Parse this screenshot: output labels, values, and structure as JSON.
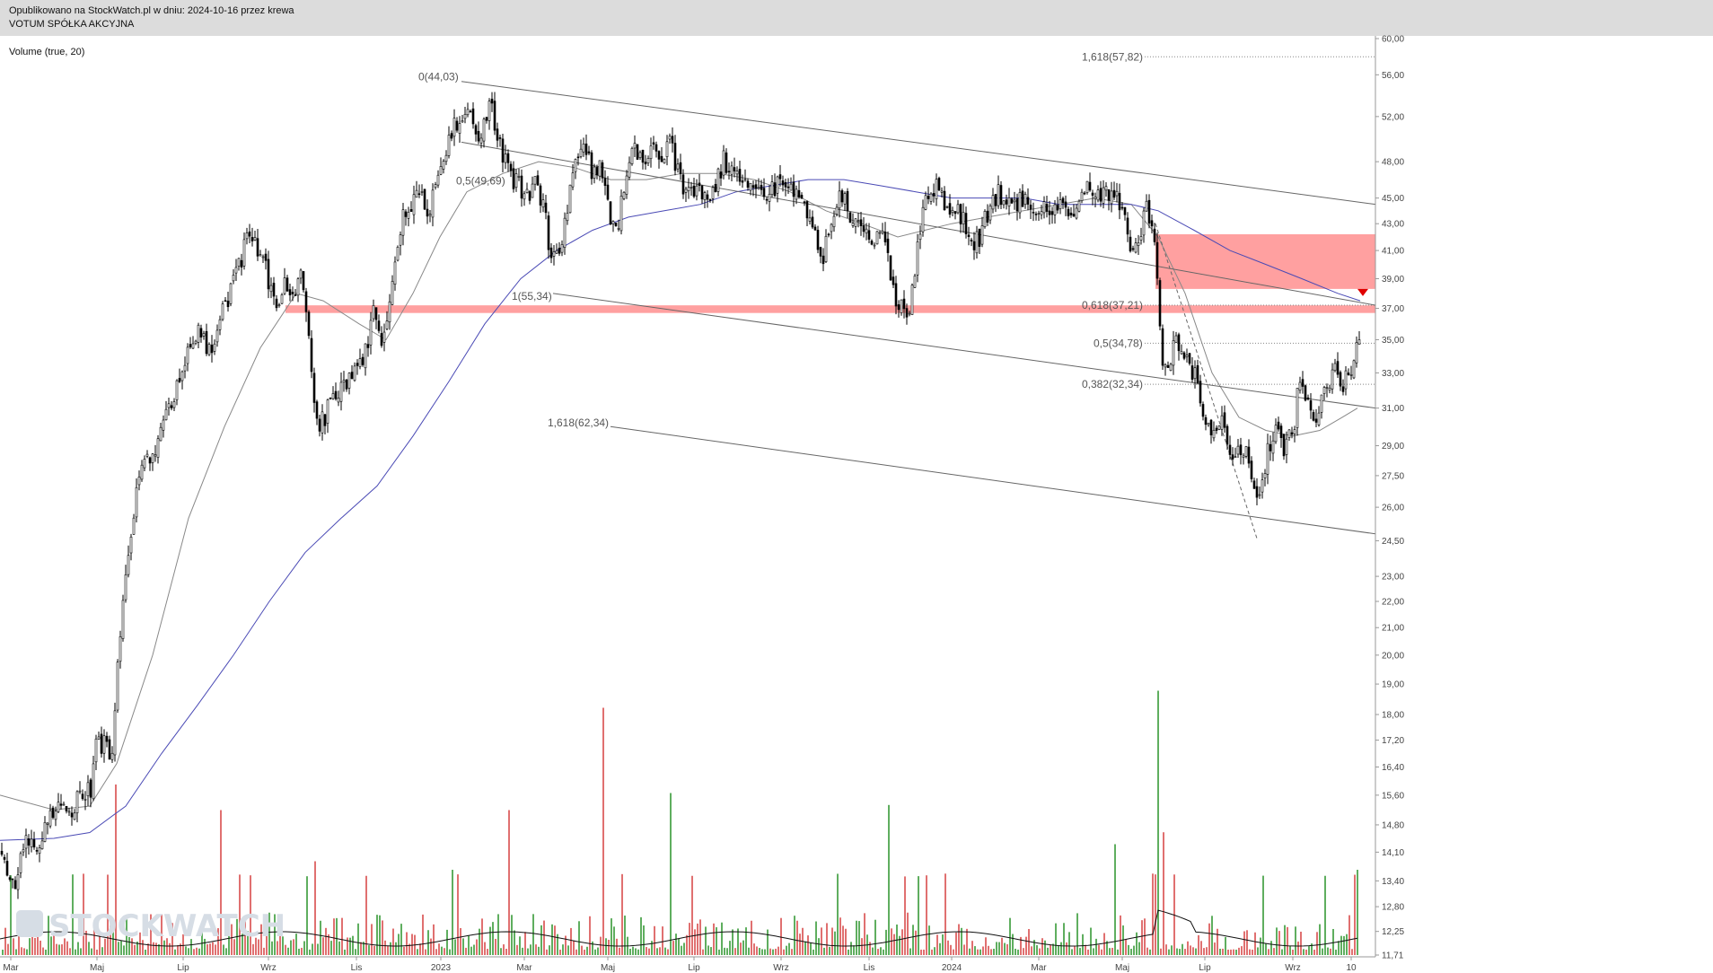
{
  "header": {
    "published": "Opublikowano na StockWatch.pl w dniu: 2024-10-16 przez krewa",
    "company": "VOTUM SPÓŁKA AKCYJNA"
  },
  "watermark": "STOCKWATCH",
  "chart_data": {
    "type": "candlestick",
    "indicator_label": "Volume (true, 20)",
    "y_axis": {
      "scale": "log",
      "range": [
        11.71,
        60.0
      ],
      "ticks": [
        "60,00",
        "56,00",
        "52,00",
        "48,00",
        "45,00",
        "43,00",
        "41,00",
        "39,00",
        "37,00",
        "35,00",
        "33,00",
        "31,00",
        "29,00",
        "27,50",
        "26,00",
        "24,50",
        "23,00",
        "22,00",
        "21,00",
        "20,00",
        "19,00",
        "18,00",
        "17,20",
        "16,40",
        "15,60",
        "14,80",
        "14,10",
        "13,40",
        "12,80",
        "12,25",
        "11,71"
      ]
    },
    "x_axis": {
      "labels": [
        "Mar",
        "Maj",
        "Lip",
        "Wrz",
        "Lis",
        "2023",
        "Mar",
        "Maj",
        "Lip",
        "Wrz",
        "Lis",
        "2024",
        "Mar",
        "Maj",
        "Lip",
        "Wrz",
        "10"
      ]
    },
    "price_path": [
      [
        0,
        14.2
      ],
      [
        8,
        13.6
      ],
      [
        15,
        13.4
      ],
      [
        25,
        14.3
      ],
      [
        40,
        14.4
      ],
      [
        60,
        15.1
      ],
      [
        80,
        15.3
      ],
      [
        100,
        15.8
      ],
      [
        105,
        17.4
      ],
      [
        115,
        17.0
      ],
      [
        125,
        16.7
      ],
      [
        130,
        19.5
      ],
      [
        140,
        23.3
      ],
      [
        150,
        26.2
      ],
      [
        160,
        28.4
      ],
      [
        175,
        29.0
      ],
      [
        185,
        30.5
      ],
      [
        195,
        32.0
      ],
      [
        205,
        34.0
      ],
      [
        215,
        35.5
      ],
      [
        225,
        35.0
      ],
      [
        235,
        34.5
      ],
      [
        245,
        37.0
      ],
      [
        255,
        38.0
      ],
      [
        265,
        40.0
      ],
      [
        275,
        42.0
      ],
      [
        285,
        41.0
      ],
      [
        295,
        39.5
      ],
      [
        305,
        37.0
      ],
      [
        315,
        38.5
      ],
      [
        325,
        38.0
      ],
      [
        335,
        39.0
      ],
      [
        342,
        36.5
      ],
      [
        350,
        30.0
      ],
      [
        360,
        30.5
      ],
      [
        370,
        31.5
      ],
      [
        380,
        32.0
      ],
      [
        395,
        33.0
      ],
      [
        405,
        34.0
      ],
      [
        415,
        36.5
      ],
      [
        425,
        35.0
      ],
      [
        435,
        38.0
      ],
      [
        445,
        43.0
      ],
      [
        455,
        44.5
      ],
      [
        465,
        45.5
      ],
      [
        475,
        44.0
      ],
      [
        485,
        45.5
      ],
      [
        495,
        49.0
      ],
      [
        505,
        51.0
      ],
      [
        515,
        52.5
      ],
      [
        525,
        52.0
      ],
      [
        535,
        50.0
      ],
      [
        545,
        53.0
      ],
      [
        555,
        50.0
      ],
      [
        565,
        47.0
      ],
      [
        575,
        46.0
      ],
      [
        585,
        45.5
      ],
      [
        595,
        46.0
      ],
      [
        605,
        44.0
      ],
      [
        612,
        41.0
      ],
      [
        620,
        40.5
      ],
      [
        630,
        44.0
      ],
      [
        640,
        48.0
      ],
      [
        650,
        49.0
      ],
      [
        660,
        47.0
      ],
      [
        670,
        47.5
      ],
      [
        678,
        43.0
      ],
      [
        685,
        42.0
      ],
      [
        695,
        46.0
      ],
      [
        705,
        49.0
      ],
      [
        715,
        48.0
      ],
      [
        725,
        49.0
      ],
      [
        735,
        47.5
      ],
      [
        745,
        49.5
      ],
      [
        755,
        47.0
      ],
      [
        765,
        45.0
      ],
      [
        775,
        46.0
      ],
      [
        785,
        45.0
      ],
      [
        795,
        46.0
      ],
      [
        805,
        48.0
      ],
      [
        815,
        47.5
      ],
      [
        825,
        46.0
      ],
      [
        835,
        45.5
      ],
      [
        845,
        45.0
      ],
      [
        855,
        45.5
      ],
      [
        865,
        46.0
      ],
      [
        875,
        46.5
      ],
      [
        885,
        45.5
      ],
      [
        895,
        44.5
      ],
      [
        905,
        43.0
      ],
      [
        915,
        40.5
      ],
      [
        925,
        43.0
      ],
      [
        935,
        45.5
      ],
      [
        945,
        43.5
      ],
      [
        955,
        43.0
      ],
      [
        965,
        42.5
      ],
      [
        975,
        42.0
      ],
      [
        985,
        41.5
      ],
      [
        992,
        39.0
      ],
      [
        998,
        37.5
      ],
      [
        1005,
        37.0
      ],
      [
        1012,
        36.5
      ],
      [
        1020,
        41.0
      ],
      [
        1030,
        45.0
      ],
      [
        1040,
        46.0
      ],
      [
        1050,
        45.0
      ],
      [
        1060,
        44.0
      ],
      [
        1070,
        43.5
      ],
      [
        1080,
        41.5
      ],
      [
        1090,
        42.0
      ],
      [
        1100,
        44.0
      ],
      [
        1110,
        45.5
      ],
      [
        1120,
        45.0
      ],
      [
        1130,
        44.5
      ],
      [
        1140,
        45.0
      ],
      [
        1150,
        44.0
      ],
      [
        1160,
        44.0
      ],
      [
        1170,
        44.5
      ],
      [
        1180,
        44.5
      ],
      [
        1190,
        43.0
      ],
      [
        1200,
        44.0
      ],
      [
        1210,
        45.5
      ],
      [
        1220,
        45.0
      ],
      [
        1230,
        45.0
      ],
      [
        1238,
        46.0
      ],
      [
        1245,
        45.0
      ],
      [
        1255,
        42.0
      ],
      [
        1265,
        41.0
      ],
      [
        1275,
        44.5
      ],
      [
        1284,
        42.0
      ],
      [
        1290,
        37.5
      ],
      [
        1295,
        33.0
      ],
      [
        1302,
        34.0
      ],
      [
        1310,
        35.0
      ],
      [
        1320,
        33.5
      ],
      [
        1330,
        33.0
      ],
      [
        1340,
        30.0
      ],
      [
        1350,
        29.5
      ],
      [
        1360,
        30.0
      ],
      [
        1370,
        28.5
      ],
      [
        1380,
        29.0
      ],
      [
        1390,
        28.5
      ],
      [
        1398,
        26.0
      ],
      [
        1405,
        27.0
      ],
      [
        1412,
        29.0
      ],
      [
        1420,
        29.5
      ],
      [
        1430,
        29.0
      ],
      [
        1440,
        30.0
      ],
      [
        1445,
        32.0
      ],
      [
        1455,
        31.5
      ],
      [
        1465,
        30.0
      ],
      [
        1475,
        32.5
      ],
      [
        1485,
        33.0
      ],
      [
        1495,
        32.5
      ],
      [
        1505,
        33.0
      ],
      [
        1512,
        35.0
      ]
    ],
    "moving_averages": [
      {
        "color": "#888888",
        "path": [
          [
            0,
            15.6
          ],
          [
            60,
            15.2
          ],
          [
            100,
            15.3
          ],
          [
            130,
            16.5
          ],
          [
            170,
            20.0
          ],
          [
            210,
            25.5
          ],
          [
            250,
            30.0
          ],
          [
            290,
            34.5
          ],
          [
            330,
            38.0
          ],
          [
            360,
            37.5
          ],
          [
            400,
            36.0
          ],
          [
            430,
            35.0
          ],
          [
            460,
            38.0
          ],
          [
            490,
            42.0
          ],
          [
            520,
            45.5
          ],
          [
            560,
            47.0
          ],
          [
            600,
            48.0
          ],
          [
            640,
            47.5
          ],
          [
            680,
            46.5
          ],
          [
            720,
            46.5
          ],
          [
            760,
            47.0
          ],
          [
            800,
            47.0
          ],
          [
            840,
            46.5
          ],
          [
            880,
            45.5
          ],
          [
            920,
            44.0
          ],
          [
            960,
            43.0
          ],
          [
            1000,
            42.0
          ],
          [
            1030,
            42.5
          ],
          [
            1060,
            43.0
          ],
          [
            1100,
            43.5
          ],
          [
            1140,
            44.0
          ],
          [
            1180,
            44.5
          ],
          [
            1220,
            45.0
          ],
          [
            1260,
            44.5
          ],
          [
            1290,
            42.0
          ],
          [
            1320,
            38.0
          ],
          [
            1350,
            33.0
          ],
          [
            1380,
            30.5
          ],
          [
            1410,
            29.8
          ],
          [
            1440,
            29.5
          ],
          [
            1470,
            29.8
          ],
          [
            1495,
            30.5
          ],
          [
            1512,
            31.0
          ]
        ]
      },
      {
        "color": "#4a4ab5",
        "path": [
          [
            0,
            14.4
          ],
          [
            60,
            14.45
          ],
          [
            100,
            14.6
          ],
          [
            140,
            15.3
          ],
          [
            180,
            16.8
          ],
          [
            220,
            18.3
          ],
          [
            260,
            20.0
          ],
          [
            300,
            22.0
          ],
          [
            340,
            24.0
          ],
          [
            380,
            25.5
          ],
          [
            420,
            27.0
          ],
          [
            460,
            29.5
          ],
          [
            500,
            32.5
          ],
          [
            540,
            36.0
          ],
          [
            580,
            39.0
          ],
          [
            620,
            41.0
          ],
          [
            660,
            42.5
          ],
          [
            700,
            43.5
          ],
          [
            740,
            44.0
          ],
          [
            780,
            44.5
          ],
          [
            820,
            45.5
          ],
          [
            860,
            46.0
          ],
          [
            900,
            46.5
          ],
          [
            940,
            46.5
          ],
          [
            980,
            46.0
          ],
          [
            1020,
            45.5
          ],
          [
            1060,
            45.0
          ],
          [
            1100,
            45.0
          ],
          [
            1140,
            45.0
          ],
          [
            1180,
            44.5
          ],
          [
            1220,
            44.5
          ],
          [
            1260,
            44.5
          ],
          [
            1290,
            44.0
          ],
          [
            1330,
            42.5
          ],
          [
            1370,
            41.0
          ],
          [
            1410,
            40.0
          ],
          [
            1450,
            39.0
          ],
          [
            1490,
            38.0
          ],
          [
            1515,
            37.5
          ]
        ]
      }
    ],
    "zones": [
      {
        "type": "horizontal-band",
        "color": "#ff8080",
        "x_range": [
          318,
          1532
        ],
        "y_range": [
          36.7,
          37.2
        ]
      },
      {
        "type": "rectangle",
        "color": "#ff8080",
        "x_range": [
          1287,
          1532
        ],
        "y_range": [
          38.3,
          42.2
        ]
      }
    ],
    "trendlines": [
      {
        "from": [
          514,
          55.34
        ],
        "to": [
          1532,
          44.5
        ]
      },
      {
        "from": [
          514,
          49.69
        ],
        "to": [
          1532,
          37.21
        ]
      },
      {
        "from": [
          616,
          38.0
        ],
        "to": [
          1532,
          31.0
        ]
      },
      {
        "from": [
          680,
          30.0
        ],
        "to": [
          1532,
          24.8
        ]
      },
      {
        "from": [
          1287,
          43.0
        ],
        "to": [
          1400,
          24.6
        ],
        "dashed": true
      }
    ],
    "fib_labels": [
      {
        "text": "0(44,03)",
        "x": 466,
        "y": 55.8
      },
      {
        "text": "0,5(49,69)",
        "x": 508,
        "y": 46.4
      },
      {
        "text": "1(55,34)",
        "x": 570,
        "y": 37.8
      },
      {
        "text": "1,618(62,34)",
        "x": 610,
        "y": 30.2
      },
      {
        "text": "1,618(57,82)",
        "x": 1205,
        "y": 57.8
      },
      {
        "text": "0,618(37,21)",
        "x": 1205,
        "y": 37.21
      },
      {
        "text": "0,5(34,78)",
        "x": 1218,
        "y": 34.78
      },
      {
        "text": "0,382(32,34)",
        "x": 1205,
        "y": 32.34
      }
    ],
    "fib_levels": [
      57.82,
      37.21,
      34.78,
      32.34
    ],
    "signal": {
      "type": "down-triangle",
      "color": "#e00000",
      "x": 1518,
      "y": 38.0
    },
    "volume": {
      "spikes": [
        [
          129,
          1.0
        ],
        [
          670,
          1.45
        ],
        [
          1289,
          1.55
        ],
        [
          1295,
          0.72
        ],
        [
          565,
          0.85
        ],
        [
          745,
          0.95
        ],
        [
          988,
          0.88
        ],
        [
          244,
          0.85
        ],
        [
          349,
          0.55
        ],
        [
          503,
          0.5
        ],
        [
          1240,
          0.65
        ],
        [
          1510,
          0.5
        ]
      ]
    }
  },
  "colors": {
    "header_bg": "#dcdcdc",
    "candle": "#000000",
    "volume_up": "#5fae5f",
    "volume_down": "#e07070",
    "zone": "#ff8080",
    "ma_slow": "#4a4ab5",
    "ma_fast": "#888888"
  }
}
